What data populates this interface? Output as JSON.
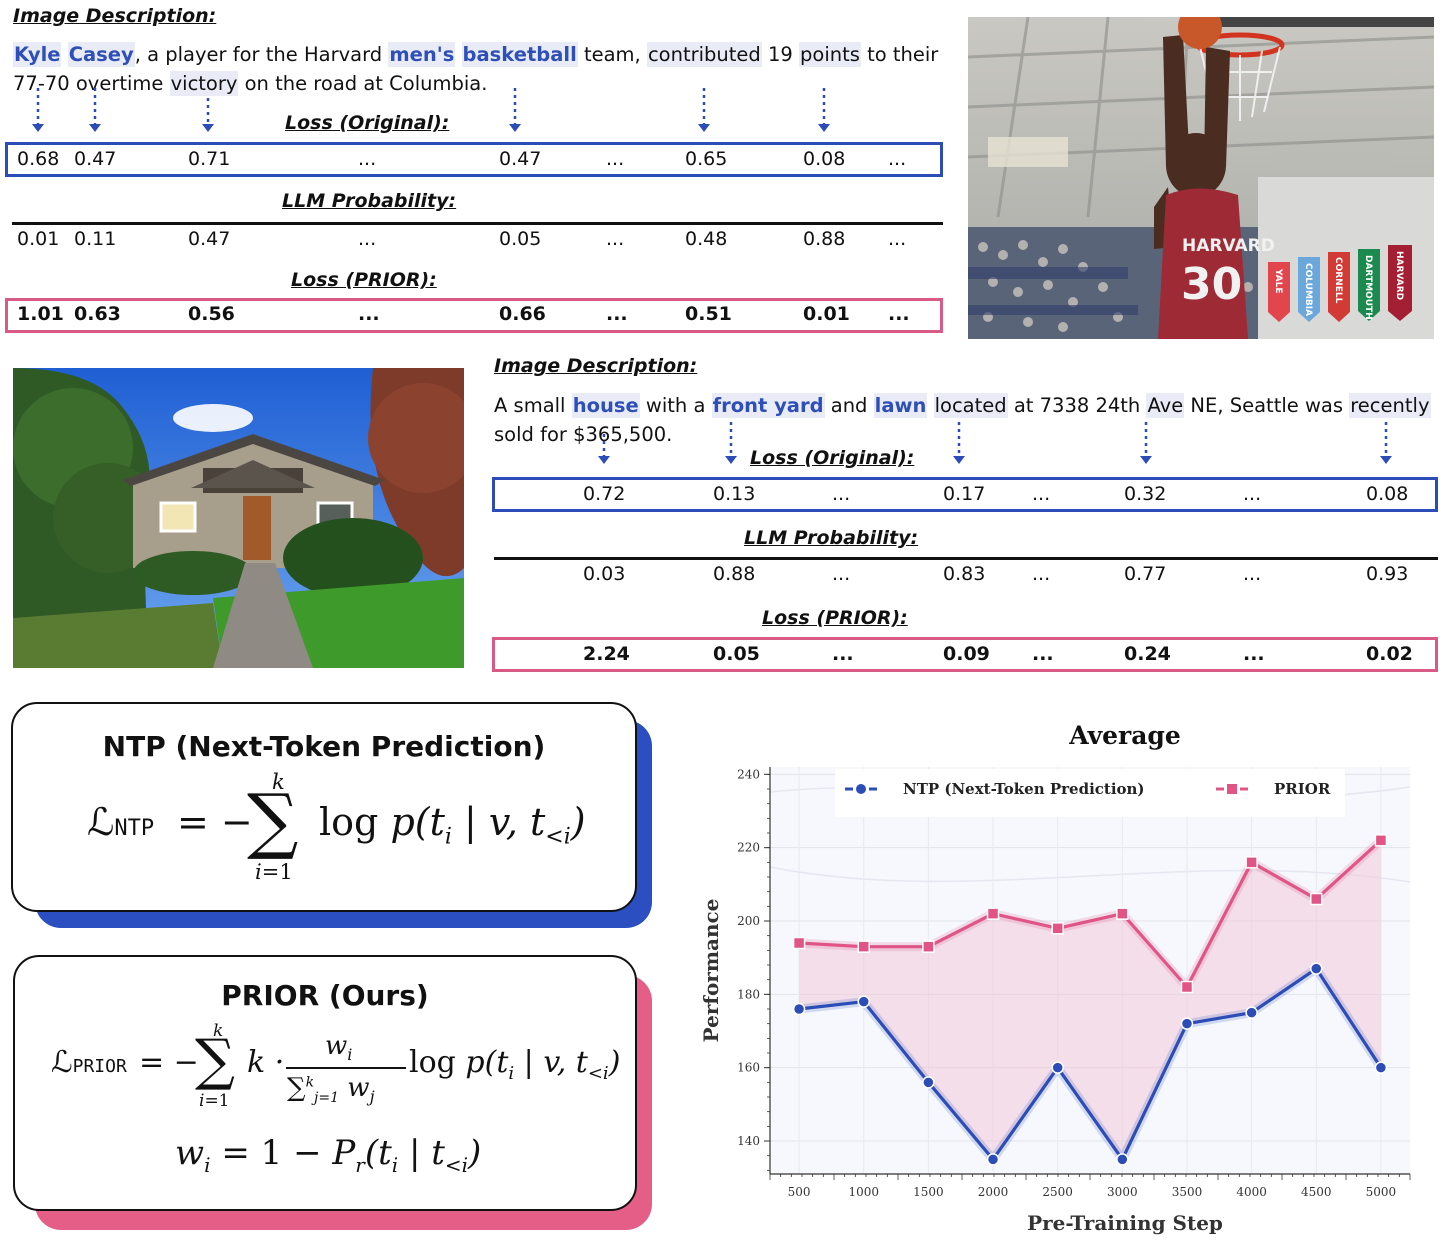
{
  "panel1": {
    "header": "Image Description:",
    "desc_tokens": [
      {
        "t": "Kyle",
        "kw": true,
        "tok": true
      },
      {
        "t": " "
      },
      {
        "t": "Casey",
        "kw": true,
        "tok": true
      },
      {
        "t": ", a player for the Harvard "
      },
      {
        "t": "men's",
        "kw": true,
        "tok": true
      },
      {
        "t": " "
      },
      {
        "t": "basketball",
        "kw": true,
        "tok": true
      },
      {
        "t": " team, "
      },
      {
        "t": "contributed",
        "tok": true
      },
      {
        "t": " 19 "
      },
      {
        "t": "points",
        "tok": true
      },
      {
        "t": " to their"
      },
      {
        "br": true
      },
      {
        "t": "77-70 overtime "
      },
      {
        "t": "victory",
        "tok": true
      },
      {
        "t": " on the road at Columbia."
      }
    ],
    "loss_original_label": "Loss (Original):",
    "llm_prob_label": "LLM Probability:",
    "loss_prior_label": "Loss (PRIOR):",
    "loss_original": [
      "0.68",
      "0.47",
      "0.71",
      "...",
      "0.47",
      "...",
      "0.65",
      "0.08",
      "..."
    ],
    "llm_prob": [
      "0.01",
      "0.11",
      "0.47",
      "...",
      "0.05",
      "...",
      "0.48",
      "0.88",
      "..."
    ],
    "loss_prior": [
      "1.01",
      "0.63",
      "0.56",
      "...",
      "0.66",
      "...",
      "0.51",
      "0.01",
      "..."
    ],
    "photo_jersey_text": "HARVARD",
    "photo_jersey_number": "30",
    "banners": [
      "YALE",
      "COLUMBIA",
      "CORNELL",
      "DARTMOUTH",
      "HARVARD"
    ]
  },
  "panel2": {
    "header": "Image Description:",
    "desc_tokens": [
      {
        "t": "A small "
      },
      {
        "t": "house",
        "kw": true,
        "tok": true
      },
      {
        "t": " with a "
      },
      {
        "t": "front yard",
        "kw": true,
        "tok": true
      },
      {
        "t": " and "
      },
      {
        "t": "lawn",
        "kw": true,
        "tok": true
      },
      {
        "t": " "
      },
      {
        "t": "located",
        "tok": true
      },
      {
        "t": " at 7338 24th "
      },
      {
        "t": "Ave",
        "tok": true
      },
      {
        "t": " NE, Seattle was "
      },
      {
        "t": "recently",
        "tok": true
      },
      {
        "br": true
      },
      {
        "t": "sold for $365,500."
      }
    ],
    "loss_original_label": "Loss (Original):",
    "llm_prob_label": "LLM Probability:",
    "loss_prior_label": "Loss (PRIOR):",
    "loss_original": [
      "0.72",
      "0.13",
      "...",
      "0.17",
      "...",
      "0.32",
      "...",
      "0.08"
    ],
    "llm_prob": [
      "0.03",
      "0.88",
      "...",
      "0.83",
      "...",
      "0.77",
      "...",
      "0.93"
    ],
    "loss_prior": [
      "2.24",
      "0.05",
      "...",
      "0.09",
      "...",
      "0.24",
      "...",
      "0.02"
    ]
  },
  "ntp_card": {
    "title": "NTP (Next-Token Prediction)"
  },
  "prior_card": {
    "title": "PRIOR (Ours)"
  },
  "colors": {
    "blue": "#2c4db7",
    "pink": "#e05585",
    "token_bg": "#e9ecf7"
  },
  "chart_data": {
    "type": "line",
    "title": "Average",
    "xlabel": "Pre-Training Step",
    "ylabel": "Performance",
    "x": [
      500,
      1000,
      1500,
      2000,
      2500,
      3000,
      3500,
      4000,
      4500,
      5000
    ],
    "ylim": [
      131,
      242
    ],
    "yticks": [
      140,
      160,
      180,
      200,
      220,
      240
    ],
    "legend_position": "top",
    "grid": true,
    "series": [
      {
        "name": "NTP (Next-Token Prediction)",
        "color": "#2c4db7",
        "marker": "circle",
        "values": [
          176,
          178,
          156,
          135,
          160,
          135,
          172,
          175,
          187,
          160
        ]
      },
      {
        "name": "PRIOR",
        "color": "#e05585",
        "marker": "square",
        "values": [
          194,
          193,
          193,
          202,
          198,
          202,
          182,
          216,
          206,
          222
        ]
      }
    ],
    "fill_between": true
  }
}
